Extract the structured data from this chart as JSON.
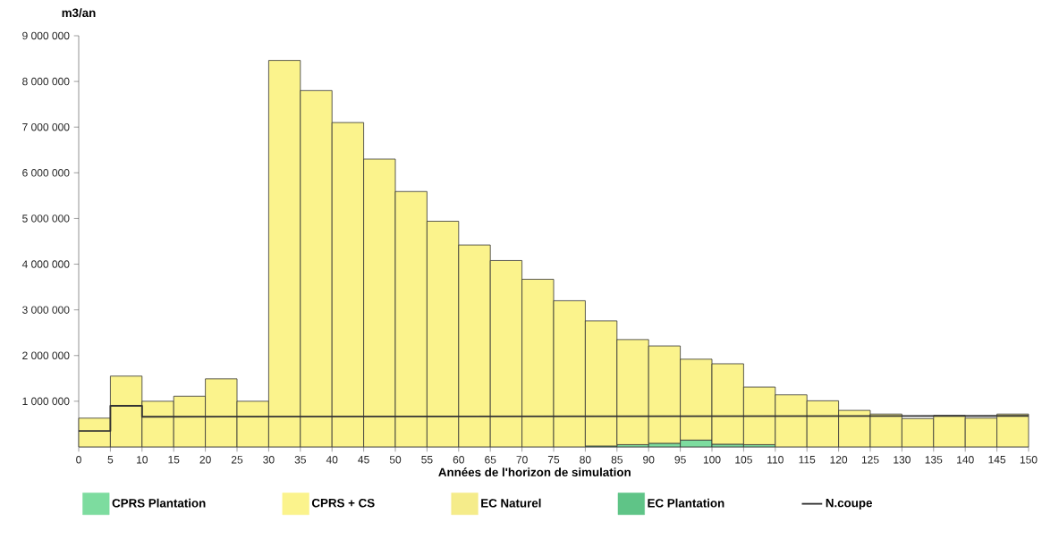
{
  "chart_data": {
    "type": "bar",
    "stacked": true,
    "ylabel": "m3/an",
    "xlabel": "Années de l'horizon de simulation",
    "x": [
      2.5,
      7.5,
      12.5,
      17.5,
      22.5,
      27.5,
      32.5,
      37.5,
      42.5,
      47.5,
      52.5,
      57.5,
      62.5,
      67.5,
      72.5,
      77.5,
      82.5,
      87.5,
      92.5,
      97.5,
      102.5,
      107.5,
      112.5,
      117.5,
      122.5,
      127.5,
      132.5,
      137.5,
      142.5,
      147.5
    ],
    "xlim": [
      0,
      150
    ],
    "xticks": [
      0,
      5,
      10,
      15,
      20,
      25,
      30,
      35,
      40,
      45,
      50,
      55,
      60,
      65,
      70,
      75,
      80,
      85,
      90,
      95,
      100,
      105,
      110,
      115,
      120,
      125,
      130,
      135,
      140,
      145,
      150
    ],
    "ylim": [
      0,
      9000000
    ],
    "yticks": [
      {
        "value": 1000000,
        "label": "1 000 000"
      },
      {
        "value": 2000000,
        "label": "2 000 000"
      },
      {
        "value": 3000000,
        "label": "3 000 000"
      },
      {
        "value": 4000000,
        "label": "4 000 000"
      },
      {
        "value": 5000000,
        "label": "5 000 000"
      },
      {
        "value": 6000000,
        "label": "6 000 000"
      },
      {
        "value": 7000000,
        "label": "7 000 000"
      },
      {
        "value": 8000000,
        "label": "8 000 000"
      },
      {
        "value": 9000000,
        "label": "9 000 000"
      }
    ],
    "series": [
      {
        "name": "CPRS Plantation",
        "color": "#7ddc9f",
        "values": [
          null,
          null,
          null,
          null,
          null,
          null,
          null,
          null,
          null,
          null,
          null,
          null,
          null,
          null,
          null,
          null,
          20000,
          50000,
          80000,
          150000,
          60000,
          50000,
          null,
          null,
          null,
          null,
          null,
          null,
          null,
          null
        ]
      },
      {
        "name": "CPRS + CS",
        "color": "#fbf38c",
        "values": [
          630000,
          1550000,
          1000000,
          1110000,
          1490000,
          1000000,
          8460000,
          7800000,
          7100000,
          6300000,
          5590000,
          4940000,
          4420000,
          4080000,
          3670000,
          3200000,
          2740000,
          2300000,
          2130000,
          1770000,
          1760000,
          1260000,
          1140000,
          1010000,
          800000,
          720000,
          620000,
          690000,
          630000,
          720000
        ]
      },
      {
        "name": "EC Naturel",
        "color": "#f5ec8a",
        "values": [
          null,
          null,
          null,
          null,
          null,
          null,
          null,
          null,
          null,
          null,
          null,
          null,
          null,
          null,
          null,
          null,
          null,
          null,
          null,
          null,
          null,
          null,
          null,
          null,
          null,
          null,
          null,
          null,
          null,
          null
        ]
      },
      {
        "name": "EC Plantation",
        "color": "#5fc487",
        "values": [
          null,
          null,
          null,
          null,
          null,
          null,
          null,
          null,
          null,
          null,
          null,
          null,
          null,
          null,
          null,
          null,
          null,
          null,
          null,
          null,
          null,
          null,
          null,
          null,
          null,
          null,
          null,
          null,
          null,
          null
        ]
      },
      {
        "name": "N.coupe",
        "type": "line",
        "color": "#333333",
        "x": [
          0,
          5,
          5,
          10,
          10,
          150
        ],
        "values": [
          350000,
          350000,
          900000,
          900000,
          660000,
          680000
        ]
      }
    ],
    "legend": "bottom"
  }
}
